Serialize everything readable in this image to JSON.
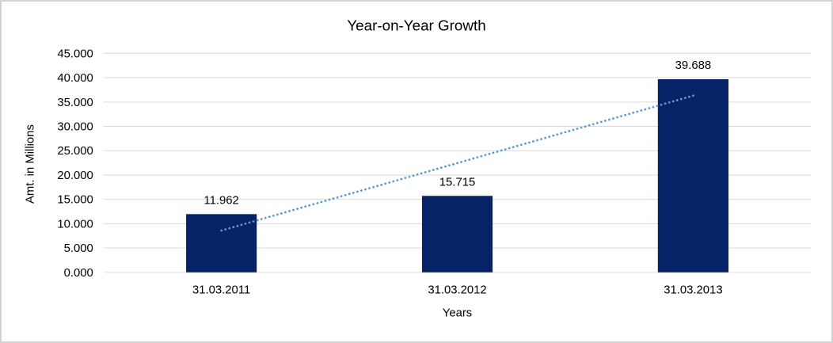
{
  "window": {
    "background_color": "#ffffff",
    "border_color": "#d3d3d3"
  },
  "chart_data": {
    "type": "bar",
    "title": "Year-on-Year Growth",
    "xlabel": "Years",
    "ylabel": "Amt. in Millions",
    "categories": [
      "31.03.2011",
      "31.03.2012",
      "31.03.2013"
    ],
    "values": [
      11.962,
      15.715,
      39.688
    ],
    "data_labels": [
      "11.962",
      "15.715",
      "39.688"
    ],
    "ylim": [
      0,
      45
    ],
    "ytick_step": 5,
    "ytick_labels": [
      "0.000",
      "5.000",
      "10.000",
      "15.000",
      "20.000",
      "25.000",
      "30.000",
      "35.000",
      "40.000",
      "45.000"
    ],
    "grid": true,
    "legend": "none",
    "bar_color": "#052366",
    "gridline_color": "#d9d9d9",
    "text_color": "#000000",
    "trendline": {
      "type": "linear",
      "style": "dotted",
      "color": "#5b9bd5",
      "start_value": 8.59,
      "end_value": 36.32
    }
  }
}
